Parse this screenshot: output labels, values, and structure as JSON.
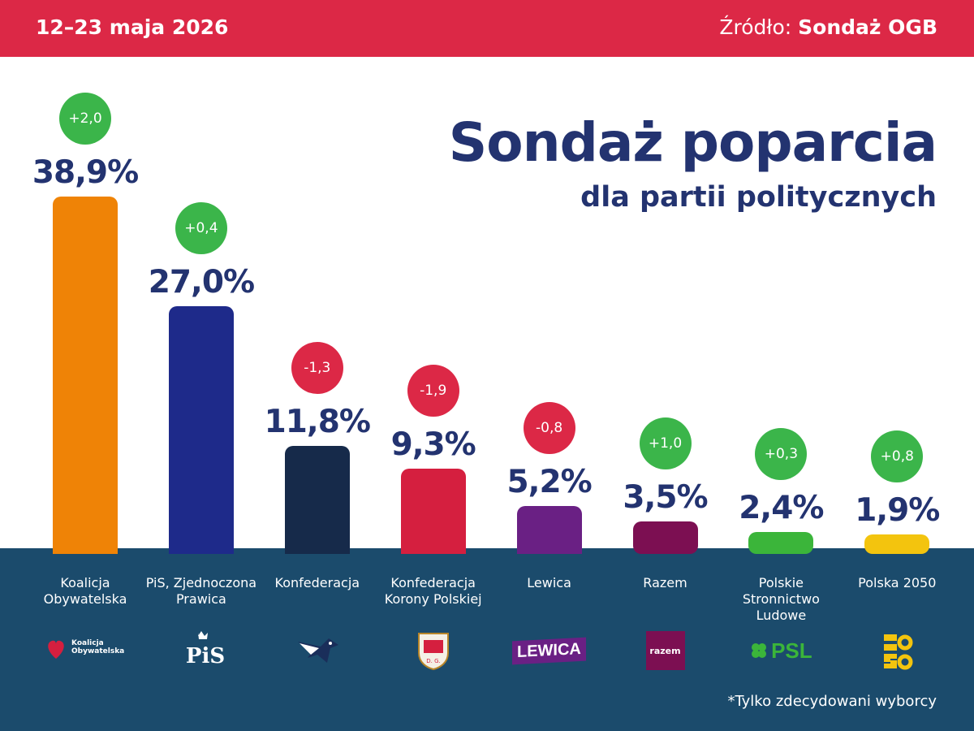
{
  "header": {
    "date": "12–23 maja 2026",
    "source_label": "Źródło:",
    "source_value": "Sondaż OGB"
  },
  "footnote": "*Tylko zdecydowani wyborcy",
  "colors": {
    "header_red": "#dc2846",
    "title_navy": "#233370",
    "band_blue": "#1b4b6c",
    "badge_up": "#3bb54a",
    "badge_down": "#dc2846"
  },
  "chart_data": {
    "type": "bar",
    "title": "Sondaż poparcia",
    "subtitle": "dla partii politycznych",
    "categories": [
      "Koalicja\nObywatelska",
      "PiS, Zjednoczona\nPrawica",
      "Konfederacja",
      "Konfederacja\nKorony Polskiej",
      "Lewica",
      "Razem",
      "Polskie\nStronnictwo\nLudowe",
      "Polska 2050"
    ],
    "values": [
      38.9,
      27.0,
      11.8,
      9.3,
      5.2,
      3.5,
      2.4,
      1.9
    ],
    "value_labels": [
      "38,9%",
      "27,0%",
      "11,8%",
      "9,3%",
      "5,2%",
      "3,5%",
      "2,4%",
      "1,9%"
    ],
    "changes": [
      2.0,
      0.4,
      -1.3,
      -1.9,
      -0.8,
      1.0,
      0.3,
      0.8
    ],
    "change_labels": [
      "+2,0",
      "+0,4",
      "-1,3",
      "-1,9",
      "-0,8",
      "+1,0",
      "+0,3",
      "+0,8"
    ],
    "bar_colors": [
      "#ef8306",
      "#1e2a8a",
      "#162a4a",
      "#d51f3f",
      "#6a2084",
      "#7c0f52",
      "#3bb53a",
      "#f3c40e"
    ],
    "logos": [
      {
        "icon": "heart-icon",
        "text": "Koalicja\nObywatelska",
        "color": "#d51f3f"
      },
      {
        "icon": "crown-icon",
        "text": "PiS",
        "color": "#1e2a8a"
      },
      {
        "icon": "eagle-icon",
        "text": "",
        "color": "#162a4a"
      },
      {
        "icon": "shield-icon",
        "text": "",
        "color": "#d51f3f"
      },
      {
        "icon": "lewica-icon",
        "text": "LEWICA",
        "color": "#6a2084"
      },
      {
        "icon": "razem-icon",
        "text": "razem",
        "color": "#7c0f52"
      },
      {
        "icon": "clover-icon",
        "text": "PSL",
        "color": "#3bb53a"
      },
      {
        "icon": "polska2050-icon",
        "text": "",
        "color": "#f3c40e"
      }
    ],
    "ylim": [
      0,
      38.9
    ],
    "legend": "none",
    "grid": false
  }
}
